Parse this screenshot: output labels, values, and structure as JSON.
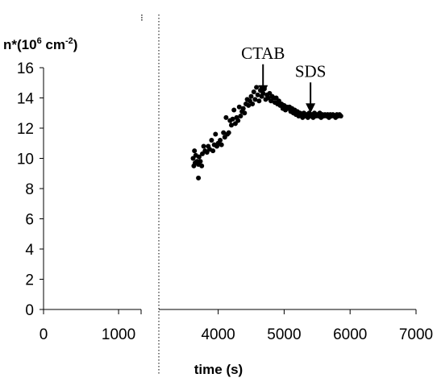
{
  "chart_data": {
    "type": "scatter",
    "title": "",
    "xlabel": "time (s)",
    "ylabel": "n*(10^6 cm^-2)",
    "ylabel_parts": {
      "prefix": "n*(10",
      "exp1": "6",
      "mid": " cm",
      "exp2": "-2",
      "suffix": ")"
    },
    "ylim": [
      0,
      16
    ],
    "y_ticks": [
      0,
      2,
      4,
      6,
      8,
      10,
      12,
      14,
      16
    ],
    "x_left_panel": {
      "xlim": [
        0,
        1300
      ],
      "ticks": [
        0,
        1000
      ]
    },
    "x_right_panel": {
      "xlim": [
        3100,
        7000
      ],
      "ticks": [
        4000,
        5000,
        6000,
        7000
      ]
    },
    "axis_break": "dotted vertical line between 1300 and 3100 s",
    "grid": false,
    "legend": "none",
    "marker_color": "#000000",
    "annotations": [
      {
        "text": "CTAB",
        "x": 4680,
        "arrow_tip_y": 14.2
      },
      {
        "text": "SDS",
        "x": 5400,
        "arrow_tip_y": 13.0
      }
    ],
    "series": [
      {
        "points": [
          [
            3620,
            10.0
          ],
          [
            3630,
            9.5
          ],
          [
            3640,
            10.5
          ],
          [
            3650,
            9.7
          ],
          [
            3660,
            10.2
          ],
          [
            3680,
            9.8
          ],
          [
            3700,
            8.7
          ],
          [
            3700,
            9.6
          ],
          [
            3710,
            10.1
          ],
          [
            3730,
            9.8
          ],
          [
            3750,
            9.5
          ],
          [
            3760,
            10.3
          ],
          [
            3780,
            10.8
          ],
          [
            3800,
            10.5
          ],
          [
            3830,
            10.4
          ],
          [
            3850,
            10.8
          ],
          [
            3870,
            10.6
          ],
          [
            3900,
            11.2
          ],
          [
            3920,
            10.5
          ],
          [
            3940,
            10.9
          ],
          [
            3960,
            11.6
          ],
          [
            3980,
            10.8
          ],
          [
            4000,
            11.0
          ],
          [
            4030,
            11.2
          ],
          [
            4050,
            10.9
          ],
          [
            4080,
            11.7
          ],
          [
            4100,
            11.4
          ],
          [
            4120,
            12.7
          ],
          [
            4140,
            11.6
          ],
          [
            4160,
            11.7
          ],
          [
            4180,
            12.5
          ],
          [
            4200,
            12.2
          ],
          [
            4220,
            12.6
          ],
          [
            4240,
            13.2
          ],
          [
            4260,
            12.3
          ],
          [
            4280,
            12.7
          ],
          [
            4300,
            12.5
          ],
          [
            4320,
            13.4
          ],
          [
            4340,
            12.8
          ],
          [
            4360,
            13.1
          ],
          [
            4380,
            13.3
          ],
          [
            4400,
            13.0
          ],
          [
            4420,
            13.6
          ],
          [
            4440,
            13.9
          ],
          [
            4460,
            13.5
          ],
          [
            4480,
            13.8
          ],
          [
            4500,
            14.1
          ],
          [
            4520,
            13.6
          ],
          [
            4540,
            14.4
          ],
          [
            4560,
            13.9
          ],
          [
            4580,
            14.7
          ],
          [
            4600,
            14.2
          ],
          [
            4620,
            13.8
          ],
          [
            4640,
            14.5
          ],
          [
            4660,
            14.1
          ],
          [
            4680,
            14.3
          ],
          [
            4700,
            14.6
          ],
          [
            4720,
            13.9
          ],
          [
            4740,
            14.2
          ],
          [
            4760,
            14.0
          ],
          [
            4780,
            14.3
          ],
          [
            4800,
            13.8
          ],
          [
            4820,
            14.1
          ],
          [
            4840,
            14.0
          ],
          [
            4860,
            13.7
          ],
          [
            4880,
            14.0
          ],
          [
            4900,
            13.6
          ],
          [
            4920,
            13.8
          ],
          [
            4940,
            13.5
          ],
          [
            4960,
            13.6
          ],
          [
            4980,
            13.3
          ],
          [
            5000,
            13.5
          ],
          [
            5020,
            13.2
          ],
          [
            5040,
            13.4
          ],
          [
            5060,
            13.3
          ],
          [
            5080,
            13.4
          ],
          [
            5100,
            13.1
          ],
          [
            5120,
            13.3
          ],
          [
            5140,
            13.0
          ],
          [
            5160,
            13.2
          ],
          [
            5180,
            12.9
          ],
          [
            5200,
            13.1
          ],
          [
            5220,
            12.8
          ],
          [
            5240,
            13.0
          ],
          [
            5260,
            12.9
          ],
          [
            5280,
            12.7
          ],
          [
            5300,
            13.0
          ],
          [
            5320,
            12.8
          ],
          [
            5340,
            12.9
          ],
          [
            5360,
            12.7
          ],
          [
            5380,
            13.0
          ],
          [
            5400,
            12.8
          ],
          [
            5420,
            12.9
          ],
          [
            5440,
            12.7
          ],
          [
            5460,
            13.0
          ],
          [
            5480,
            12.8
          ],
          [
            5500,
            12.9
          ],
          [
            5520,
            12.8
          ],
          [
            5540,
            13.0
          ],
          [
            5560,
            12.7
          ],
          [
            5580,
            12.9
          ],
          [
            5600,
            12.8
          ],
          [
            5620,
            12.9
          ],
          [
            5640,
            12.8
          ],
          [
            5660,
            12.9
          ],
          [
            5680,
            12.7
          ],
          [
            5700,
            12.9
          ],
          [
            5720,
            12.8
          ],
          [
            5740,
            12.9
          ],
          [
            5760,
            12.8
          ],
          [
            5780,
            12.7
          ],
          [
            5800,
            12.9
          ],
          [
            5820,
            12.8
          ],
          [
            5840,
            12.9
          ],
          [
            5860,
            12.8
          ]
        ]
      }
    ]
  }
}
